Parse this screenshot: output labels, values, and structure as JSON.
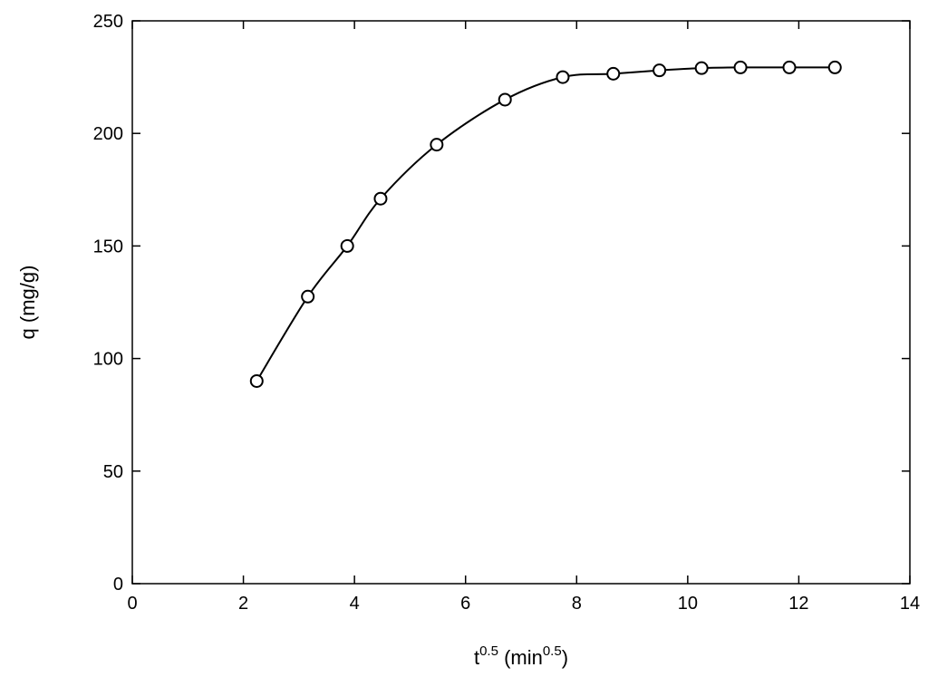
{
  "chart_data": {
    "type": "scatter",
    "title": "",
    "xlabel": {
      "base": "t",
      "sup": "0.5",
      "unit_prefix": " (min",
      "unit_sup": "0.5",
      "unit_suffix": ")"
    },
    "ylabel": "q (mg/g)",
    "xlim": [
      0,
      14
    ],
    "ylim": [
      0,
      250
    ],
    "xticks": [
      0,
      2,
      4,
      6,
      8,
      10,
      12,
      14
    ],
    "yticks": [
      0,
      50,
      100,
      150,
      200,
      250
    ],
    "grid": false,
    "legend": "none",
    "series": [
      {
        "marker": "open-circle",
        "line": "smooth",
        "color": "#000000",
        "x": [
          2.24,
          3.16,
          3.87,
          4.47,
          5.48,
          6.71,
          7.75,
          8.66,
          9.49,
          10.25,
          10.95,
          11.83,
          12.65
        ],
        "y": [
          90,
          127.5,
          150,
          171,
          195,
          215,
          225,
          226.5,
          228,
          229,
          229.3,
          229.3,
          229.3
        ]
      }
    ]
  }
}
